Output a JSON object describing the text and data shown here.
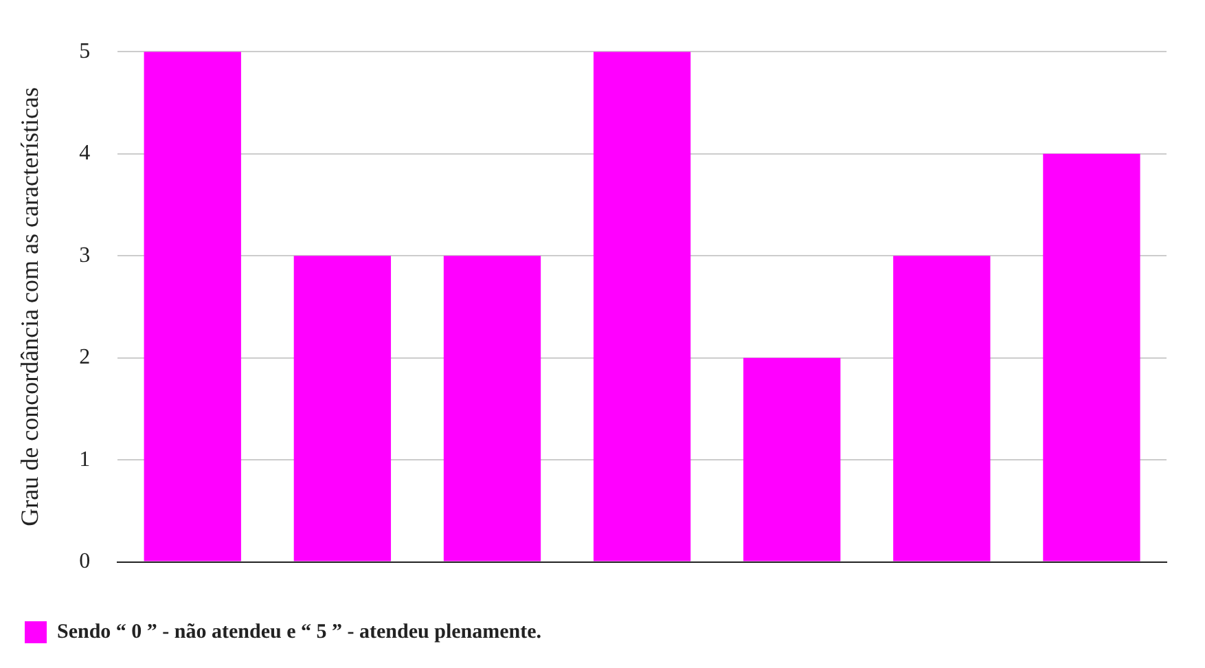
{
  "chart_data": {
    "type": "bar",
    "ylabel": "Grau de concordância com as características",
    "categories": [
      null,
      null,
      null,
      null,
      null,
      null,
      null
    ],
    "series": [
      {
        "name": "Sendo “ 0 ” - não atendeu e “ 5 ” - atendeu plenamente.",
        "color": "#ff00ff",
        "values": [
          5,
          3,
          3,
          5,
          2,
          3,
          4
        ]
      }
    ],
    "ylim": [
      0,
      5
    ],
    "yticks": [
      0,
      1,
      2,
      3,
      4,
      5
    ],
    "grid": "y",
    "legend": "bottom left"
  }
}
